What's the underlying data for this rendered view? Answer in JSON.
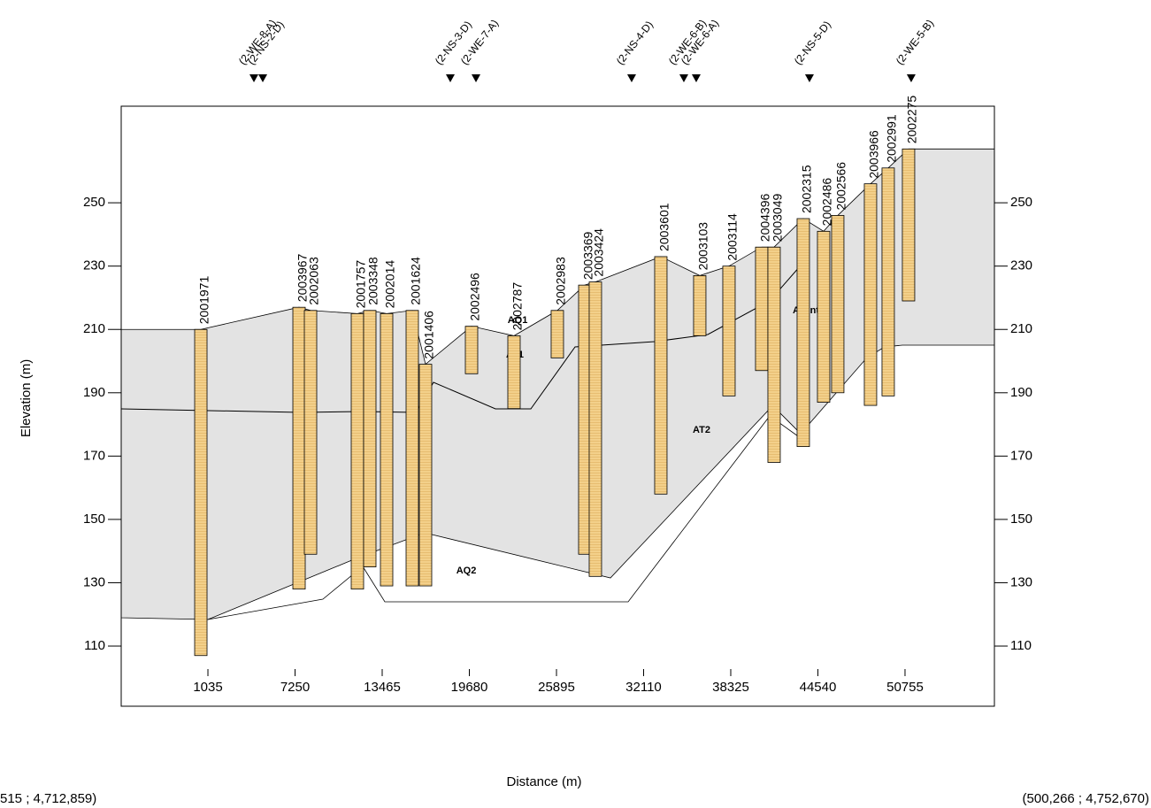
{
  "chart_data": {
    "type": "cross-section",
    "x_label": "Distance (m)",
    "y_label": "Elevation (m)",
    "xlim": [
      -5150,
      57130
    ],
    "ylim": [
      91,
      280.5
    ],
    "xticks": [
      1035,
      7250,
      13465,
      19680,
      25895,
      32110,
      38325,
      44540,
      50755
    ],
    "yticks": [
      110,
      130,
      150,
      170,
      190,
      210,
      230,
      250
    ],
    "color": "#f3d08a",
    "boreholes": [
      {
        "name": "2001971",
        "x": 530,
        "top": 210,
        "bottom": 107
      },
      {
        "name": "2003967",
        "x": 7534,
        "top": 217,
        "bottom": 128
      },
      {
        "name": "2002063",
        "x": 8354,
        "top": 216,
        "bottom": 139
      },
      {
        "name": "2001757",
        "x": 11698,
        "top": 215,
        "bottom": 128
      },
      {
        "name": "2003348",
        "x": 12581,
        "top": 216,
        "bottom": 135
      },
      {
        "name": "2002014",
        "x": 13780,
        "top": 215,
        "bottom": 129
      },
      {
        "name": "2001624",
        "x": 15610,
        "top": 216,
        "bottom": 129
      },
      {
        "name": "2001406",
        "x": 16556,
        "top": 199,
        "bottom": 129
      },
      {
        "name": "2002496",
        "x": 19837,
        "top": 211,
        "bottom": 196
      },
      {
        "name": "2002787",
        "x": 22866,
        "top": 208,
        "bottom": 185
      },
      {
        "name": "2002983",
        "x": 25957,
        "top": 216,
        "bottom": 201
      },
      {
        "name": "2003369",
        "x": 27913,
        "top": 224,
        "bottom": 139
      },
      {
        "name": "2003424",
        "x": 28670,
        "top": 225,
        "bottom": 132
      },
      {
        "name": "2003601",
        "x": 33339,
        "top": 233,
        "bottom": 158
      },
      {
        "name": "2003103",
        "x": 36115,
        "top": 227,
        "bottom": 208
      },
      {
        "name": "2003114",
        "x": 38198,
        "top": 230,
        "bottom": 189
      },
      {
        "name": "2004396",
        "x": 40532,
        "top": 236,
        "bottom": 197
      },
      {
        "name": "2003049",
        "x": 41416,
        "top": 236,
        "bottom": 168
      },
      {
        "name": "2002315",
        "x": 43498,
        "top": 245,
        "bottom": 173
      },
      {
        "name": "2002486",
        "x": 44949,
        "top": 241,
        "bottom": 187
      },
      {
        "name": "2002566",
        "x": 45958,
        "top": 246,
        "bottom": 190
      },
      {
        "name": "2003966",
        "x": 48293,
        "top": 256,
        "bottom": 186
      },
      {
        "name": "2002991",
        "x": 49555,
        "top": 261,
        "bottom": 189
      },
      {
        "name": "2002275",
        "x": 51006,
        "top": 267,
        "bottom": 219
      }
    ],
    "markers": [
      {
        "name": "(2-WE-8-A)",
        "x": 4316
      },
      {
        "name": "(2-NS-2-D)",
        "x": 4947
      },
      {
        "name": "(2-NS-3-D)",
        "x": 18323
      },
      {
        "name": "(2-WE-7-A)",
        "x": 20153
      },
      {
        "name": "(2-NS-4-D)",
        "x": 31257
      },
      {
        "name": "(2-WE-6-B)",
        "x": 34980
      },
      {
        "name": "(2-WE-6-A)",
        "x": 35863
      },
      {
        "name": "(2-NS-5-D)",
        "x": 43939
      },
      {
        "name": "(2-WE-5-B)",
        "x": 51195
      }
    ],
    "units": [
      "AQ1",
      "AT1",
      "AQint",
      "AT2",
      "AQ2"
    ],
    "coord_start": "515 ; 4,712,859)",
    "coord_end": "(500,266 ; 4,752,670)"
  }
}
